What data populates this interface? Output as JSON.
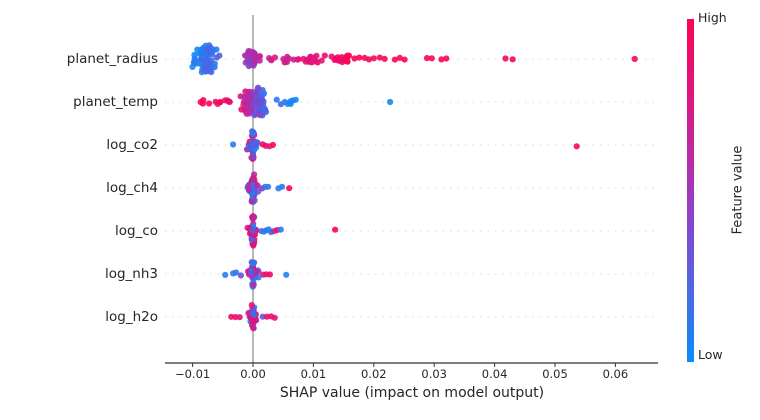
{
  "chart_data": {
    "type": "scatter",
    "subtype": "shap_beeswarm_summary",
    "xlabel": "SHAP value (impact on model output)",
    "xlim": [
      -0.0146,
      0.067
    ],
    "grid": "dotted-horizontal",
    "legend_position": "none",
    "zero_line_value": 0,
    "x_ticks": [
      {
        "value": -0.01,
        "label": "−0.01"
      },
      {
        "value": 0.0,
        "label": "0.00"
      },
      {
        "value": 0.01,
        "label": "0.01"
      },
      {
        "value": 0.02,
        "label": "0.02"
      },
      {
        "value": 0.03,
        "label": "0.03"
      },
      {
        "value": 0.04,
        "label": "0.04"
      },
      {
        "value": 0.05,
        "label": "0.05"
      },
      {
        "value": 0.06,
        "label": "0.06"
      }
    ],
    "colorbar": {
      "label": "Feature value",
      "high_label": "High",
      "low_label": "Low",
      "gradient_low_to_high": [
        "#0a8bfb",
        "#4a6ae4",
        "#8447cd",
        "#bc2aa8",
        "#e31379",
        "#fa0458"
      ]
    },
    "colors": {
      "dot_low": "#0e8cfa",
      "dot_mid": "#9539be",
      "dot_high": "#fa0458",
      "zero_line": "#999999",
      "axis": "#333333",
      "gridline": "#d9d9d9",
      "text": "#262626"
    },
    "features": [
      {
        "name": "planet_radius",
        "clusters": [
          {
            "shape": "violin",
            "n": 70,
            "x_min": -0.0115,
            "x_max": -0.0015,
            "x_center": -0.0078,
            "x_sd": 0.0022,
            "height": 13,
            "color_start": 0.0,
            "color_end": 0.35,
            "color_noise": 0.12
          },
          {
            "shape": "violin",
            "n": 30,
            "x_min": -0.0028,
            "x_max": 0.0015,
            "x_center": -0.0005,
            "x_sd": 0.0011,
            "height": 7,
            "color_start": 0.38,
            "color_end": 0.68,
            "color_noise": 0.15
          },
          {
            "shape": "band",
            "n": 55,
            "x_min": 0.0002,
            "x_max": 0.016,
            "height": 3.5,
            "color_start": 0.62,
            "color_end": 1.0,
            "color_noise": 0.1
          }
        ],
        "points": [
          [
            0.0168,
            1
          ],
          [
            0.0176,
            1
          ],
          [
            0.0185,
            1
          ],
          [
            0.0192,
            1
          ],
          [
            0.02,
            0.97
          ],
          [
            0.021,
            1
          ],
          [
            0.0218,
            1
          ],
          [
            0.0235,
            1
          ],
          [
            0.0243,
            1
          ],
          [
            0.0251,
            1
          ],
          [
            0.0288,
            1
          ],
          [
            0.0296,
            1
          ],
          [
            0.0312,
            0.98
          ],
          [
            0.032,
            1
          ],
          [
            0.0418,
            1
          ],
          [
            0.043,
            1
          ],
          [
            0.0632,
            1
          ]
        ]
      },
      {
        "name": "planet_temp",
        "clusters": [
          {
            "shape": "band",
            "n": 13,
            "x_min": -0.0092,
            "x_max": -0.0036,
            "height": 2,
            "color_start": 1.0,
            "color_end": 0.9,
            "color_noise": 0.05
          },
          {
            "shape": "violin",
            "n": 35,
            "x_min": -0.0036,
            "x_max": 0.0003,
            "x_center": -0.0008,
            "x_sd": 0.0012,
            "height": 11,
            "color_start": 0.95,
            "color_end": 0.55,
            "color_noise": 0.12
          },
          {
            "shape": "violin",
            "n": 45,
            "x_min": -0.0002,
            "x_max": 0.0036,
            "x_center": 0.0009,
            "x_sd": 0.0013,
            "height": 15,
            "color_start": 0.45,
            "color_end": 0.05,
            "color_noise": 0.12
          },
          {
            "shape": "band",
            "n": 8,
            "x_min": 0.0036,
            "x_max": 0.0078,
            "height": 2.5,
            "color_start": 0.15,
            "color_end": 0.02,
            "color_noise": 0.05
          }
        ],
        "points": [
          [
            0.0227,
            0.03
          ]
        ]
      },
      {
        "name": "log_co2",
        "clusters": [
          {
            "shape": "cross",
            "n": 52,
            "x_min": -0.0013,
            "x_max": 0.0013,
            "height": 15,
            "color_mode": "mixed"
          }
        ],
        "points": [
          [
            -0.0033,
            0.07
          ],
          [
            0.0016,
            0.9
          ],
          [
            0.0021,
            0.95
          ],
          [
            0.0027,
            0.85
          ],
          [
            0.0033,
            0.98
          ],
          [
            0.0536,
            1.0
          ]
        ]
      },
      {
        "name": "log_ch4",
        "clusters": [
          {
            "shape": "cross",
            "n": 52,
            "x_min": -0.0013,
            "x_max": 0.0013,
            "height": 14,
            "color_mode": "mixed"
          }
        ],
        "points": [
          [
            0.0015,
            0.5
          ],
          [
            0.002,
            0.1
          ],
          [
            0.0025,
            0.12
          ],
          [
            0.0042,
            0.06
          ],
          [
            0.0048,
            0.12
          ],
          [
            0.006,
            1.0
          ]
        ]
      },
      {
        "name": "log_co",
        "clusters": [
          {
            "shape": "cross",
            "n": 52,
            "x_min": -0.0011,
            "x_max": 0.0011,
            "height": 15,
            "color_mode": "mixed"
          }
        ],
        "points": [
          [
            0.0014,
            0.2
          ],
          [
            0.0018,
            0.1
          ],
          [
            0.0022,
            0.12
          ],
          [
            0.0026,
            0.07
          ],
          [
            0.003,
            0.15
          ],
          [
            0.0035,
            0.6
          ],
          [
            0.004,
            0.92
          ],
          [
            0.0046,
            0.1
          ],
          [
            0.0136,
            1.0
          ]
        ]
      },
      {
        "name": "log_nh3",
        "clusters": [
          {
            "shape": "cross",
            "n": 46,
            "x_min": -0.0014,
            "x_max": 0.0014,
            "height": 13,
            "color_mode": "mixed"
          }
        ],
        "points": [
          [
            -0.0046,
            0.07
          ],
          [
            -0.0033,
            0.1
          ],
          [
            -0.0028,
            0.12
          ],
          [
            -0.002,
            0.3
          ],
          [
            0.0017,
            0.85
          ],
          [
            0.0022,
            0.9
          ],
          [
            0.0028,
            0.95
          ],
          [
            0.0055,
            0.07
          ]
        ]
      },
      {
        "name": "log_h2o",
        "clusters": [
          {
            "shape": "cross",
            "n": 46,
            "x_min": -0.0011,
            "x_max": 0.0011,
            "height": 13,
            "color_mode": "mixed"
          }
        ],
        "points": [
          [
            -0.0036,
            0.9
          ],
          [
            -0.0029,
            0.95
          ],
          [
            -0.0022,
            0.85
          ],
          [
            0.0016,
            0.3
          ],
          [
            0.0023,
            0.9
          ],
          [
            0.003,
            0.92
          ],
          [
            0.0036,
            0.88
          ]
        ]
      }
    ]
  }
}
